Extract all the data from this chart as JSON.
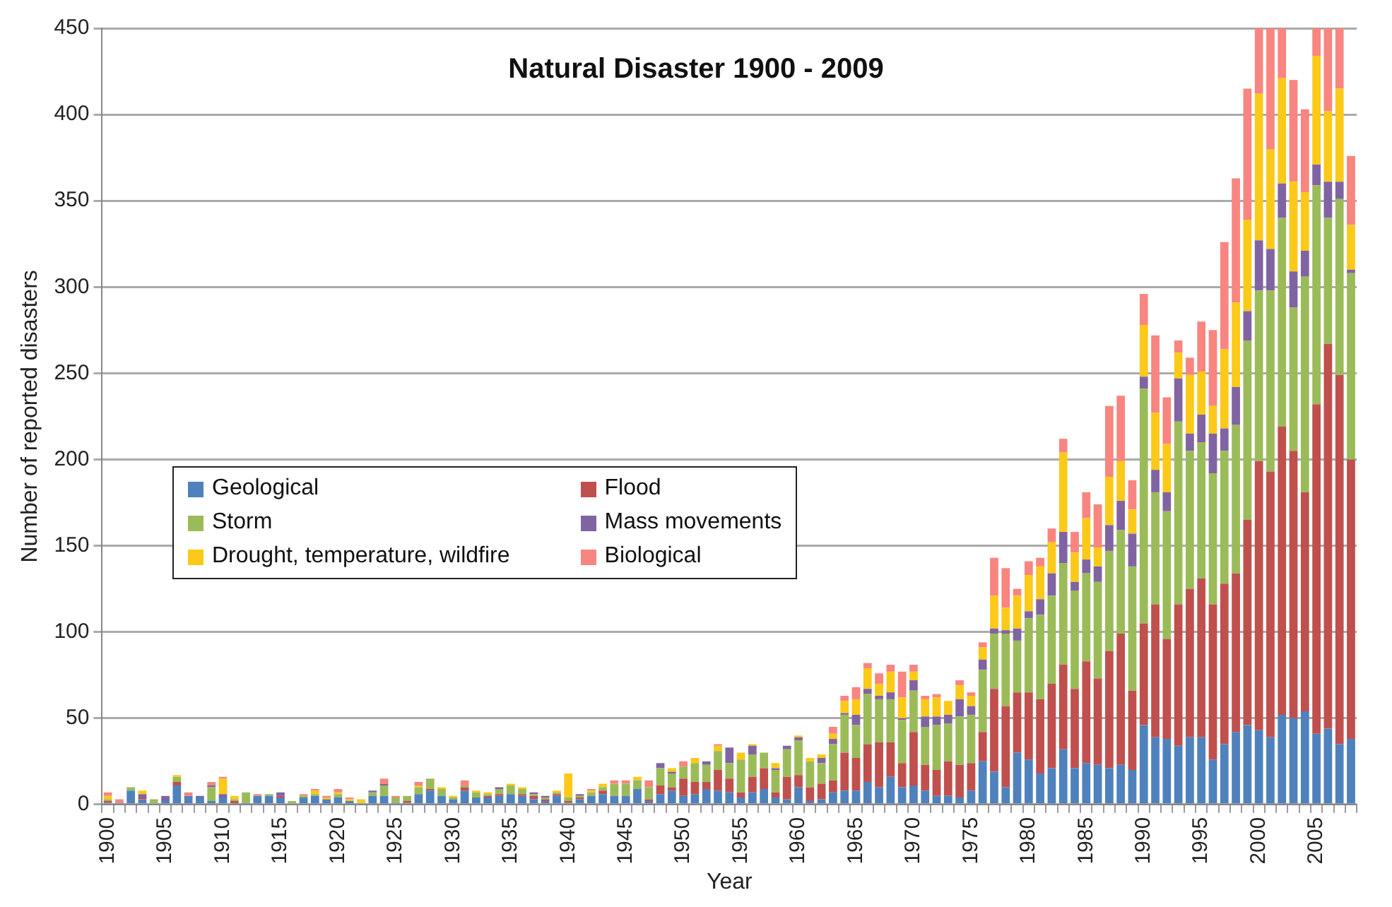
{
  "chart_data": {
    "type": "bar",
    "title": "Natural Disaster 1900 - 2009",
    "xlabel": "Year",
    "ylabel": "Number of reported disasters",
    "stacked": true,
    "grid": "y",
    "legend": "center left",
    "ylim": [
      0,
      450
    ],
    "yticks": [
      0,
      50,
      100,
      150,
      200,
      250,
      300,
      350,
      400,
      450
    ],
    "categories": [
      "1900",
      null,
      null,
      null,
      null,
      "1905",
      null,
      null,
      null,
      null,
      "1910",
      null,
      null,
      null,
      null,
      "1915",
      null,
      null,
      null,
      null,
      "1920",
      null,
      null,
      null,
      null,
      "1925",
      null,
      null,
      null,
      null,
      "1930",
      null,
      null,
      null,
      null,
      "1935",
      null,
      null,
      null,
      null,
      "1940",
      null,
      null,
      null,
      null,
      "1945",
      null,
      null,
      null,
      null,
      "1950",
      null,
      null,
      null,
      null,
      "1955",
      null,
      null,
      null,
      null,
      "1960",
      null,
      null,
      null,
      null,
      "1965",
      null,
      null,
      null,
      null,
      "1970",
      null,
      null,
      null,
      null,
      "1975",
      null,
      null,
      null,
      null,
      "1980",
      null,
      null,
      null,
      null,
      "1985",
      null,
      null,
      null,
      null,
      "1990",
      null,
      null,
      null,
      null,
      "1995",
      null,
      null,
      null,
      null,
      "2000",
      null,
      null,
      null,
      null,
      "2005",
      null,
      null,
      null
    ],
    "series": [
      {
        "name": "Geological",
        "color": "#4f81bd",
        "values": [
          1,
          1,
          8,
          3,
          0,
          2,
          11,
          5,
          4,
          2,
          4,
          0,
          1,
          5,
          5,
          4,
          0,
          4,
          5,
          3,
          4,
          2,
          0,
          5,
          5,
          1,
          1,
          6,
          8,
          5,
          3,
          8,
          4,
          4,
          5,
          6,
          5,
          3,
          2,
          5,
          1,
          3,
          5,
          6,
          5,
          5,
          9,
          2,
          6,
          8,
          5,
          6,
          9,
          8,
          7,
          4,
          7,
          9,
          4,
          3,
          10,
          2,
          3,
          7,
          8,
          8,
          13,
          10,
          16,
          10,
          11,
          8,
          5,
          5,
          4,
          8,
          25,
          19,
          10,
          30,
          26,
          18,
          21,
          32,
          21,
          24,
          23,
          21,
          23,
          20,
          46,
          39,
          38,
          34,
          39,
          39,
          26,
          35,
          42,
          46,
          43,
          39,
          52,
          50,
          54,
          41,
          44,
          35,
          38
        ]
      },
      {
        "name": "Flood",
        "color": "#c0504d",
        "values": [
          1,
          0,
          0,
          1,
          0,
          0,
          2,
          0,
          0,
          0,
          0,
          2,
          0,
          0,
          0,
          1,
          0,
          0,
          0,
          0,
          0,
          0,
          0,
          0,
          0,
          0,
          1,
          0,
          1,
          0,
          0,
          2,
          0,
          1,
          1,
          0,
          1,
          2,
          1,
          1,
          1,
          1,
          0,
          2,
          0,
          0,
          0,
          1,
          5,
          2,
          10,
          7,
          4,
          12,
          8,
          3,
          9,
          12,
          3,
          13,
          7,
          8,
          9,
          7,
          22,
          19,
          22,
          26,
          20,
          14,
          31,
          15,
          15,
          20,
          19,
          16,
          17,
          48,
          47,
          35,
          39,
          43,
          49,
          49,
          46,
          59,
          50,
          68,
          76,
          46,
          59,
          77,
          58,
          82,
          86,
          92,
          90,
          93,
          92,
          119,
          156,
          154,
          167,
          155,
          127,
          191,
          223,
          214,
          162
        ]
      },
      {
        "name": "Storm",
        "color": "#9bbb59",
        "values": [
          1,
          0,
          2,
          0,
          3,
          0,
          3,
          0,
          0,
          8,
          0,
          1,
          6,
          0,
          1,
          0,
          2,
          1,
          1,
          0,
          2,
          0,
          1,
          2,
          6,
          3,
          3,
          4,
          6,
          4,
          1,
          1,
          3,
          1,
          3,
          5,
          3,
          1,
          1,
          1,
          2,
          1,
          2,
          2,
          7,
          7,
          5,
          7,
          10,
          8,
          7,
          11,
          10,
          11,
          9,
          19,
          13,
          9,
          13,
          16,
          20,
          15,
          12,
          21,
          22,
          19,
          29,
          25,
          25,
          25,
          24,
          22,
          26,
          22,
          28,
          28,
          36,
          32,
          42,
          30,
          43,
          49,
          51,
          59,
          57,
          51,
          56,
          58,
          60,
          72,
          136,
          65,
          74,
          106,
          80,
          79,
          76,
          77,
          86,
          104,
          99,
          105,
          121,
          83,
          125,
          127,
          73,
          102,
          108
        ]
      },
      {
        "name": "Mass movements",
        "color": "#8064a2",
        "values": [
          0,
          0,
          0,
          2,
          0,
          3,
          0,
          0,
          1,
          1,
          2,
          0,
          0,
          0,
          0,
          2,
          0,
          0,
          0,
          0,
          0,
          0,
          0,
          1,
          1,
          0,
          0,
          0,
          0,
          0,
          0,
          0,
          0,
          0,
          1,
          0,
          0,
          1,
          1,
          0,
          0,
          1,
          0,
          0,
          0,
          0,
          0,
          0,
          3,
          1,
          0,
          0,
          2,
          0,
          9,
          0,
          5,
          0,
          1,
          2,
          2,
          0,
          3,
          3,
          1,
          6,
          3,
          2,
          4,
          1,
          6,
          6,
          5,
          5,
          10,
          5,
          6,
          3,
          2,
          7,
          4,
          9,
          13,
          18,
          5,
          8,
          9,
          15,
          17,
          19,
          7,
          13,
          11,
          25,
          10,
          16,
          23,
          13,
          22,
          17,
          29,
          24,
          20,
          21,
          15,
          12,
          21,
          10,
          2
        ]
      },
      {
        "name": "Drought, temperature, wildfire",
        "color": "#fbc918",
        "values": [
          2,
          0,
          0,
          2,
          0,
          0,
          1,
          0,
          0,
          0,
          9,
          2,
          0,
          0,
          0,
          0,
          0,
          0,
          2,
          1,
          1,
          1,
          2,
          0,
          0,
          0,
          0,
          1,
          0,
          1,
          1,
          0,
          1,
          1,
          0,
          1,
          1,
          0,
          0,
          1,
          14,
          0,
          1,
          2,
          0,
          0,
          2,
          0,
          0,
          2,
          0,
          3,
          0,
          3,
          0,
          4,
          1,
          0,
          3,
          0,
          1,
          2,
          2,
          3,
          7,
          9,
          12,
          7,
          12,
          12,
          5,
          10,
          11,
          8,
          8,
          6,
          7,
          19,
          13,
          19,
          21,
          19,
          18,
          46,
          17,
          24,
          11,
          28,
          23,
          14,
          30,
          33,
          28,
          15,
          34,
          25,
          16,
          46,
          49,
          53,
          85,
          58,
          61,
          52,
          34,
          63,
          41,
          54,
          26
        ]
      },
      {
        "name": "Biological",
        "color": "#f88580",
        "values": [
          2,
          2,
          0,
          0,
          0,
          0,
          0,
          2,
          0,
          2,
          1,
          0,
          0,
          1,
          0,
          0,
          0,
          1,
          1,
          1,
          2,
          1,
          0,
          0,
          3,
          1,
          0,
          2,
          0,
          0,
          0,
          3,
          0,
          0,
          0,
          0,
          0,
          0,
          0,
          0,
          0,
          0,
          1,
          0,
          2,
          2,
          0,
          4,
          0,
          0,
          3,
          0,
          0,
          1,
          0,
          0,
          0,
          0,
          0,
          0,
          0,
          0,
          0,
          4,
          3,
          7,
          3,
          6,
          4,
          15,
          4,
          2,
          2,
          0,
          3,
          2,
          3,
          22,
          23,
          4,
          8,
          5,
          8,
          8,
          12,
          15,
          25,
          41,
          38,
          17,
          18,
          45,
          27,
          7,
          10,
          29,
          44,
          62,
          72,
          76,
          38,
          70,
          29,
          59,
          48,
          16,
          48,
          35,
          40
        ]
      }
    ]
  }
}
